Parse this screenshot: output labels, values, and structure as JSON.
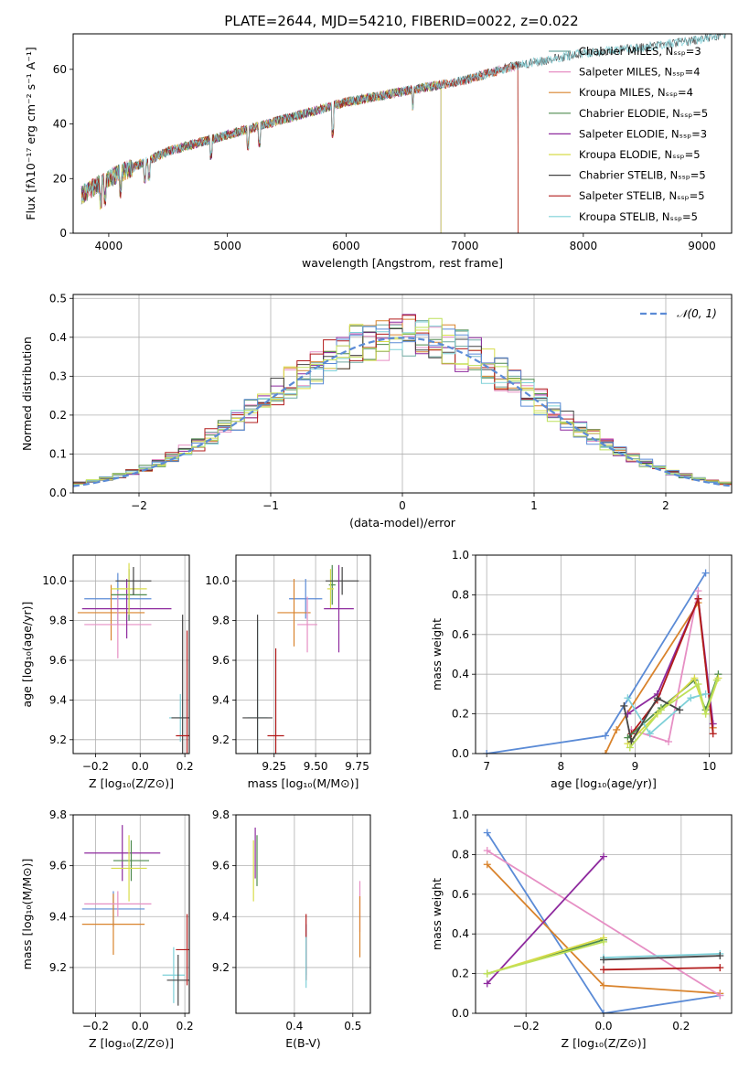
{
  "figure": {
    "title": "PLATE=2644, MJD=54210, FIBERID=0022, z=0.022"
  },
  "chart_data": [
    {
      "id": "spectrum",
      "type": "line",
      "xlabel": "wavelength [Angstrom, rest frame]",
      "ylabel": "Flux [fλ10⁻¹⁷ erg cm⁻² s⁻¹ A⁻¹]",
      "xlim": [
        3700,
        9250
      ],
      "ylim": [
        0,
        73
      ],
      "xticks": [
        "4000",
        "5000",
        "6000",
        "7000",
        "8000",
        "9000"
      ],
      "yticks": [
        "0",
        "20",
        "40",
        "60"
      ],
      "grid": false,
      "legend_position": "top-right",
      "series": [
        {
          "name": "Chabrier MILES, N_SSP=3",
          "color": "#6fa8a0",
          "x_range": [
            3770,
            7450
          ]
        },
        {
          "name": "Salpeter MILES, N_SSP=4",
          "color": "#e68fc4",
          "x_range": [
            3770,
            7450
          ]
        },
        {
          "name": "Kroupa MILES, N_SSP=4",
          "color": "#d9832c",
          "x_range": [
            3770,
            7450
          ]
        },
        {
          "name": "Chabrier ELODIE, N_SSP=5",
          "color": "#4e8a4e",
          "x_range": [
            3770,
            6800
          ]
        },
        {
          "name": "Salpeter ELODIE, N_SSP=3",
          "color": "#8e2a9e",
          "x_range": [
            3770,
            6800
          ]
        },
        {
          "name": "Kroupa ELODIE, N_SSP=5",
          "color": "#d8dc4a",
          "x_range": [
            3770,
            6800
          ]
        },
        {
          "name": "Chabrier STELIB, N_SSP=5",
          "color": "#444444",
          "x_range": [
            3770,
            9200
          ]
        },
        {
          "name": "Salpeter STELIB, N_SSP=5",
          "color": "#b21b1b",
          "x_range": [
            3770,
            7450
          ]
        },
        {
          "name": "Kroupa STELIB, N_SSP=5",
          "color": "#7ed0d8",
          "x_range": [
            3770,
            9200
          ]
        }
      ],
      "continuum": {
        "x": [
          3770,
          4000,
          4200,
          4500,
          5000,
          5500,
          6000,
          6500,
          7000,
          7400,
          8000,
          8500,
          9000,
          9200
        ],
        "y": [
          14,
          20,
          24,
          30,
          36,
          42,
          48,
          52,
          56,
          61,
          66,
          68,
          71,
          73
        ]
      }
    },
    {
      "id": "residuals",
      "type": "step",
      "xlabel": "(data-model)/error",
      "ylabel": "Normed distribution",
      "xlim": [
        -2.5,
        2.5
      ],
      "ylim": [
        0,
        0.51
      ],
      "xticks": [
        "−2",
        "−1",
        "0",
        "1",
        "2"
      ],
      "yticks": [
        "0.0",
        "0.1",
        "0.2",
        "0.3",
        "0.4",
        "0.5"
      ],
      "grid": true,
      "legend": "𝒩(0, 1)",
      "legend_position": "top-right",
      "gaussian": {
        "mu": 0,
        "sigma": 1,
        "color": "#5b8bd6"
      },
      "bins": {
        "start": -2.5,
        "width": 0.1,
        "count": 50
      },
      "series_colors": [
        "#6fa8a0",
        "#e68fc4",
        "#d9832c",
        "#4e8a4e",
        "#8e2a9e",
        "#d8dc4a",
        "#444444",
        "#b21b1b",
        "#7ed0d8",
        "#5b8bd6",
        "#bde05a"
      ]
    },
    {
      "id": "age_vs_Z",
      "type": "errorbar",
      "xlabel": "Z [log₁₀(Z/Z⊙)]",
      "ylabel": "age  [log₁₀(age/yr)]",
      "xlim": [
        -0.3,
        0.22
      ],
      "ylim": [
        9.13,
        10.13
      ],
      "xticks": [
        "−0.2",
        "0.0",
        "0.2"
      ],
      "yticks": [
        "9.2",
        "9.4",
        "9.6",
        "9.8",
        "10.0"
      ],
      "grid": true,
      "points": [
        {
          "color": "#5b8bd6",
          "x": -0.1,
          "y": 9.91,
          "xerr": 0.15,
          "yerr": 0.13
        },
        {
          "color": "#d9832c",
          "x": -0.13,
          "y": 9.84,
          "xerr": 0.15,
          "yerr": 0.14
        },
        {
          "color": "#e68fc4",
          "x": -0.1,
          "y": 9.78,
          "xerr": 0.15,
          "yerr": 0.17
        },
        {
          "color": "#8e2a9e",
          "x": -0.06,
          "y": 9.86,
          "xerr": 0.2,
          "yerr": 0.15
        },
        {
          "color": "#4e8a4e",
          "x": -0.05,
          "y": 9.93,
          "xerr": 0.08,
          "yerr": 0.13
        },
        {
          "color": "#d8dc4a",
          "x": -0.05,
          "y": 9.96,
          "xerr": 0.08,
          "yerr": 0.13
        },
        {
          "color": "#444444",
          "x": -0.03,
          "y": 10.0,
          "xerr": 0.08,
          "yerr": 0.07
        },
        {
          "color": "#7ed0d8",
          "x": 0.18,
          "y": 9.31,
          "xerr": 0.05,
          "yerr": 0.12
        },
        {
          "color": "#444444",
          "x": 0.19,
          "y": 9.31,
          "xerr": 0.05,
          "yerr": 0.52
        },
        {
          "color": "#b21b1b",
          "x": 0.21,
          "y": 9.22,
          "xerr": 0.05,
          "yerr": 0.53
        }
      ]
    },
    {
      "id": "age_vs_mass",
      "type": "errorbar",
      "xlabel": "mass [log₁₀(M/M⊙)]",
      "ylabel": "",
      "xlim": [
        9.02,
        9.83
      ],
      "ylim": [
        9.13,
        10.13
      ],
      "xticks": [
        "9.25",
        "9.50",
        "9.75"
      ],
      "yticks": [
        "9.2",
        "9.4",
        "9.6",
        "9.8",
        "10.0"
      ],
      "grid": true,
      "points": [
        {
          "color": "#5b8bd6",
          "x": 9.44,
          "y": 9.91,
          "xerr": 0.1,
          "yerr": 0.1
        },
        {
          "color": "#d9832c",
          "x": 9.37,
          "y": 9.84,
          "xerr": 0.1,
          "yerr": 0.17
        },
        {
          "color": "#e68fc4",
          "x": 9.45,
          "y": 9.78,
          "xerr": 0.06,
          "yerr": 0.14
        },
        {
          "color": "#4e8a4e",
          "x": 9.6,
          "y": 9.98,
          "xerr": 0.02,
          "yerr": 0.1
        },
        {
          "color": "#d8dc4a",
          "x": 9.59,
          "y": 9.96,
          "xerr": 0.02,
          "yerr": 0.1
        },
        {
          "color": "#444444",
          "x": 9.66,
          "y": 10.0,
          "xerr": 0.1,
          "yerr": 0.07
        },
        {
          "color": "#8e2a9e",
          "x": 9.64,
          "y": 9.86,
          "xerr": 0.09,
          "yerr": 0.22
        },
        {
          "color": "#7ed0d8",
          "x": 9.15,
          "y": 9.31,
          "xerr": 0.06,
          "yerr": 0.49
        },
        {
          "color": "#444444",
          "x": 9.15,
          "y": 9.31,
          "xerr": 0.09,
          "yerr": 0.52
        },
        {
          "color": "#b21b1b",
          "x": 9.26,
          "y": 9.22,
          "xerr": 0.05,
          "yerr": 0.44
        }
      ]
    },
    {
      "id": "weight_vs_age",
      "type": "line",
      "xlabel": "age  [log₁₀(age/yr)]",
      "ylabel": "mass weight",
      "xlim": [
        6.85,
        10.3
      ],
      "ylim": [
        0,
        1
      ],
      "xticks": [
        "7",
        "8",
        "9",
        "10"
      ],
      "yticks": [
        "0.0",
        "0.2",
        "0.4",
        "0.6",
        "0.8",
        "1.0"
      ],
      "grid": true,
      "series": [
        {
          "color": "#5b8bd6",
          "x": [
            7.0,
            8.6,
            9.95
          ],
          "y": [
            0.0,
            0.09,
            0.91
          ]
        },
        {
          "color": "#d9832c",
          "x": [
            8.6,
            8.75,
            9.85,
            10.05
          ],
          "y": [
            0.0,
            0.12,
            0.76,
            0.13
          ]
        },
        {
          "color": "#e68fc4",
          "x": [
            8.95,
            9.45,
            9.85
          ],
          "y": [
            0.12,
            0.06,
            0.82
          ]
        },
        {
          "color": "#8e2a9e",
          "x": [
            8.9,
            9.3,
            9.85,
            10.05
          ],
          "y": [
            0.2,
            0.3,
            0.78,
            0.15
          ]
        },
        {
          "color": "#b21b1b",
          "x": [
            8.95,
            9.3,
            9.85,
            10.05
          ],
          "y": [
            0.1,
            0.27,
            0.78,
            0.1
          ]
        },
        {
          "color": "#4e8a4e",
          "x": [
            8.9,
            9.35,
            9.8,
            9.95,
            10.12
          ],
          "y": [
            0.08,
            0.23,
            0.37,
            0.22,
            0.4
          ]
        },
        {
          "color": "#d8dc4a",
          "x": [
            8.9,
            9.3,
            9.8,
            9.95,
            10.12
          ],
          "y": [
            0.05,
            0.2,
            0.38,
            0.2,
            0.38
          ]
        },
        {
          "color": "#7ed0d8",
          "x": [
            8.9,
            9.2,
            9.75,
            9.95
          ],
          "y": [
            0.28,
            0.1,
            0.28,
            0.3
          ]
        },
        {
          "color": "#444444",
          "x": [
            8.85,
            8.95,
            9.3,
            9.6
          ],
          "y": [
            0.24,
            0.06,
            0.28,
            0.22
          ]
        },
        {
          "color": "#bde05a",
          "x": [
            8.93,
            9.35,
            9.85,
            9.95,
            10.1
          ],
          "y": [
            0.03,
            0.22,
            0.35,
            0.2,
            0.37
          ]
        }
      ]
    },
    {
      "id": "mass_vs_Z",
      "type": "errorbar",
      "xlabel": "Z [log₁₀(Z/Z⊙)]",
      "ylabel": "mass [log₁₀(M/M⊙)]",
      "xlim": [
        -0.3,
        0.22
      ],
      "ylim": [
        9.02,
        9.8
      ],
      "xticks": [
        "−0.2",
        "0.0",
        "0.2"
      ],
      "yticks": [
        "9.2",
        "9.4",
        "9.6",
        "9.8"
      ],
      "grid": true,
      "points": [
        {
          "color": "#5b8bd6",
          "x": -0.12,
          "y": 9.43,
          "xerr": 0.14,
          "yerr": 0.07
        },
        {
          "color": "#d9832c",
          "x": -0.12,
          "y": 9.37,
          "xerr": 0.14,
          "yerr": 0.12
        },
        {
          "color": "#e68fc4",
          "x": -0.1,
          "y": 9.45,
          "xerr": 0.15,
          "yerr": 0.05
        },
        {
          "color": "#8e2a9e",
          "x": -0.08,
          "y": 9.65,
          "xerr": 0.17,
          "yerr": 0.11
        },
        {
          "color": "#4e8a4e",
          "x": -0.04,
          "y": 9.62,
          "xerr": 0.08,
          "yerr": 0.08
        },
        {
          "color": "#d8dc4a",
          "x": -0.05,
          "y": 9.59,
          "xerr": 0.08,
          "yerr": 0.13
        },
        {
          "color": "#7ed0d8",
          "x": 0.15,
          "y": 9.17,
          "xerr": 0.05,
          "yerr": 0.11
        },
        {
          "color": "#444444",
          "x": 0.17,
          "y": 9.15,
          "xerr": 0.05,
          "yerr": 0.1
        },
        {
          "color": "#b21b1b",
          "x": 0.21,
          "y": 9.27,
          "xerr": 0.05,
          "yerr": 0.14
        }
      ]
    },
    {
      "id": "mass_vs_EBV",
      "type": "errorbar",
      "xlabel": "E(B-V)",
      "ylabel": "",
      "xlim": [
        0.3,
        0.53
      ],
      "ylim": [
        9.02,
        9.8
      ],
      "xticks": [
        "0.4",
        "0.5"
      ],
      "yticks": [
        "9.2",
        "9.4",
        "9.6",
        "9.8"
      ],
      "grid": true,
      "points": [
        {
          "color": "#8e2a9e",
          "x": 0.333,
          "y": 9.65,
          "xerr": 0,
          "yerr": 0.1
        },
        {
          "color": "#4e8a4e",
          "x": 0.336,
          "y": 9.62,
          "xerr": 0,
          "yerr": 0.1
        },
        {
          "color": "#d8dc4a",
          "x": 0.33,
          "y": 9.58,
          "xerr": 0,
          "yerr": 0.12
        },
        {
          "color": "#5b8bd6",
          "x": 0.42,
          "y": 9.27,
          "xerr": 0,
          "yerr": 0.1
        },
        {
          "color": "#b21b1b",
          "x": 0.42,
          "y": 9.28,
          "xerr": 0,
          "yerr": 0.13
        },
        {
          "color": "#7ed0d8",
          "x": 0.42,
          "y": 9.22,
          "xerr": 0,
          "yerr": 0.1
        },
        {
          "color": "#e68fc4",
          "x": 0.512,
          "y": 9.44,
          "xerr": 0,
          "yerr": 0.1
        },
        {
          "color": "#d9832c",
          "x": 0.512,
          "y": 9.36,
          "xerr": 0,
          "yerr": 0.12
        }
      ]
    },
    {
      "id": "weight_vs_Z",
      "type": "line",
      "xlabel": "Z [log₁₀(Z/Z⊙)]",
      "ylabel": "mass weight",
      "xlim": [
        -0.33,
        0.33
      ],
      "ylim": [
        0,
        1
      ],
      "xticks": [
        "−0.2",
        "0.0",
        "0.2"
      ],
      "yticks": [
        "0.0",
        "0.2",
        "0.4",
        "0.6",
        "0.8",
        "1.0"
      ],
      "grid": true,
      "series": [
        {
          "color": "#5b8bd6",
          "x": [
            -0.3,
            0.0,
            0.3
          ],
          "y": [
            0.91,
            0.0,
            0.09
          ]
        },
        {
          "color": "#d9832c",
          "x": [
            -0.3,
            0.0,
            0.3
          ],
          "y": [
            0.75,
            0.14,
            0.1
          ]
        },
        {
          "color": "#e68fc4",
          "x": [
            -0.3,
            0.3
          ],
          "y": [
            0.82,
            0.09
          ]
        },
        {
          "color": "#8e2a9e",
          "x": [
            -0.3,
            0.0
          ],
          "y": [
            0.15,
            0.79
          ]
        },
        {
          "color": "#4e8a4e",
          "x": [
            -0.3,
            0.0
          ],
          "y": [
            0.2,
            0.37
          ]
        },
        {
          "color": "#d8dc4a",
          "x": [
            -0.3,
            0.0
          ],
          "y": [
            0.2,
            0.38
          ]
        },
        {
          "color": "#bde05a",
          "x": [
            -0.3,
            0.0
          ],
          "y": [
            0.2,
            0.36
          ]
        },
        {
          "color": "#b21b1b",
          "x": [
            0.0,
            0.3
          ],
          "y": [
            0.22,
            0.23
          ]
        },
        {
          "color": "#7ed0d8",
          "x": [
            0.0,
            0.3
          ],
          "y": [
            0.28,
            0.3
          ]
        },
        {
          "color": "#444444",
          "x": [
            0.0,
            0.3
          ],
          "y": [
            0.27,
            0.29
          ]
        }
      ]
    }
  ]
}
